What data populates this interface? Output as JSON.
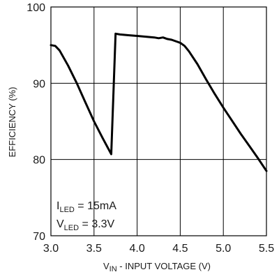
{
  "chart_data": {
    "type": "line",
    "xlabel": {
      "main": "V",
      "sub": "IN",
      "rest": " - INPUT VOLTAGE (V)"
    },
    "ylabel": "EFFICIENCY (%)",
    "xlim": [
      3.0,
      5.5
    ],
    "ylim": [
      70,
      100
    ],
    "xticks": [
      "3.0",
      "3.5",
      "4.0",
      "4.5",
      "5.0",
      "5.5"
    ],
    "yticks": [
      "100",
      "90",
      "80",
      "70"
    ],
    "xtick_values": [
      3.0,
      3.5,
      4.0,
      4.5,
      5.0,
      5.5
    ],
    "ytick_values": [
      100,
      90,
      80,
      70
    ],
    "grid": true,
    "annotations": [
      {
        "main": "I",
        "sub": "LED",
        "rest": " = 15mA"
      },
      {
        "main": "V",
        "sub": "LED",
        "rest": " = 3.3V"
      }
    ],
    "series": [
      {
        "x": [
          3.0,
          3.05,
          3.1,
          3.2,
          3.3,
          3.4,
          3.5,
          3.6,
          3.7,
          3.75,
          3.8,
          3.9,
          4.0,
          4.1,
          4.2,
          4.25,
          4.3,
          4.35,
          4.4,
          4.5,
          4.55,
          4.6,
          4.7,
          4.8,
          4.9,
          5.0,
          5.1,
          5.2,
          5.3,
          5.4,
          5.5
        ],
        "y": [
          95.0,
          94.9,
          94.3,
          92.3,
          90.0,
          87.5,
          85.0,
          82.8,
          80.7,
          96.5,
          96.4,
          96.3,
          96.2,
          96.1,
          96.0,
          95.9,
          96.0,
          95.8,
          95.7,
          95.3,
          94.9,
          94.2,
          92.5,
          90.5,
          88.6,
          86.8,
          85.1,
          83.4,
          81.8,
          80.2,
          78.5
        ],
        "color": "#000000"
      }
    ]
  }
}
